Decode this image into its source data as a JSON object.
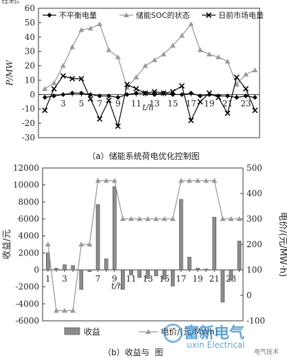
{
  "header_fragment": "控制。",
  "caption_a": "（a）储能系统荷电优化控制图",
  "caption_b": "（b）收益与",
  "caption_b_tail": "图",
  "watermark": {
    "brand": "富新电气",
    "sub": "uxin Electrical",
    "tag": "电气技术"
  },
  "colors": {
    "series_line": "#000000",
    "soc_line": "#9a9a9a",
    "bar_fill": "#8c8c8c",
    "price_line": "#9a9a9a"
  },
  "chart_data": [
    {
      "type": "line",
      "ylabel": "P/MW",
      "xlabel": "t/h",
      "x": [
        1,
        2,
        3,
        4,
        5,
        6,
        7,
        8,
        9,
        10,
        11,
        12,
        13,
        14,
        15,
        16,
        17,
        18,
        19,
        20,
        21,
        22,
        23,
        24
      ],
      "xticks": [
        3,
        5,
        7,
        9,
        11,
        13,
        15,
        17,
        19,
        21,
        23
      ],
      "ylim": [
        -30,
        60
      ],
      "yticks": [
        -30,
        -20,
        -10,
        0,
        10,
        20,
        30,
        40,
        50,
        60
      ],
      "grid": false,
      "legend": "top",
      "series": [
        {
          "name": "不平衡电量",
          "marker": "diamond",
          "color": "#000000",
          "values": [
            -2,
            -1,
            0,
            1,
            1,
            0,
            -1,
            -1,
            -2,
            0,
            1,
            1,
            0,
            1,
            0,
            0,
            1,
            -1,
            0,
            -1,
            -1,
            -2,
            -1,
            -2
          ]
        },
        {
          "name": "储能SOC的状态",
          "marker": "triangle",
          "color": "#9a9a9a",
          "values": [
            4,
            8,
            20,
            33,
            45,
            46,
            49,
            31,
            26,
            5,
            12,
            20,
            24,
            28,
            34,
            41,
            49,
            31,
            28,
            26,
            23,
            7,
            14,
            17
          ]
        },
        {
          "name": "日前市场电量",
          "marker": "x",
          "color": "#000000",
          "values": [
            -11,
            4,
            13,
            11,
            11,
            -3,
            -17,
            -4,
            -22,
            7,
            4,
            1,
            2,
            1,
            2,
            6,
            -18,
            -5,
            1,
            -2,
            -13,
            12,
            4,
            -11
          ]
        }
      ]
    },
    {
      "type": "bar",
      "ylabel": "收益/元",
      "y2label": "电价/(元/MW·h)",
      "xlabel": "t/h",
      "x": [
        1,
        2,
        3,
        4,
        5,
        6,
        7,
        8,
        9,
        10,
        11,
        12,
        13,
        14,
        15,
        16,
        17,
        18,
        19,
        20,
        21,
        22,
        23,
        24
      ],
      "xticks": [
        1,
        3,
        5,
        7,
        9,
        11,
        13,
        15,
        17,
        19,
        21,
        23
      ],
      "ylim": [
        -6000,
        12000
      ],
      "yticks": [
        -6000,
        -4000,
        -2000,
        0,
        2000,
        4000,
        6000,
        8000,
        10000,
        12000
      ],
      "y2lim": [
        -100,
        500
      ],
      "y2ticks": [
        -100,
        0,
        100,
        200,
        300,
        400,
        500
      ],
      "legend": "bottom",
      "series": [
        {
          "name": "收益",
          "axis": "left",
          "type": "bar",
          "color": "#8c8c8c",
          "values": [
            2000,
            200,
            600,
            500,
            -2300,
            -200,
            7700,
            1300,
            9800,
            -2300,
            -600,
            -900,
            -1000,
            -700,
            -1100,
            -1900,
            8300,
            1500,
            200,
            100,
            6200,
            -3800,
            -1200,
            3400
          ]
        },
        {
          "name": "电价/(元/MWh)",
          "axis": "right",
          "type": "line",
          "marker": "triangle",
          "color": "#9a9a9a",
          "values": [
            200,
            -60,
            -60,
            -60,
            200,
            200,
            450,
            450,
            450,
            300,
            300,
            300,
            300,
            300,
            300,
            300,
            450,
            450,
            450,
            450,
            450,
            300,
            300,
            300
          ]
        }
      ]
    }
  ]
}
